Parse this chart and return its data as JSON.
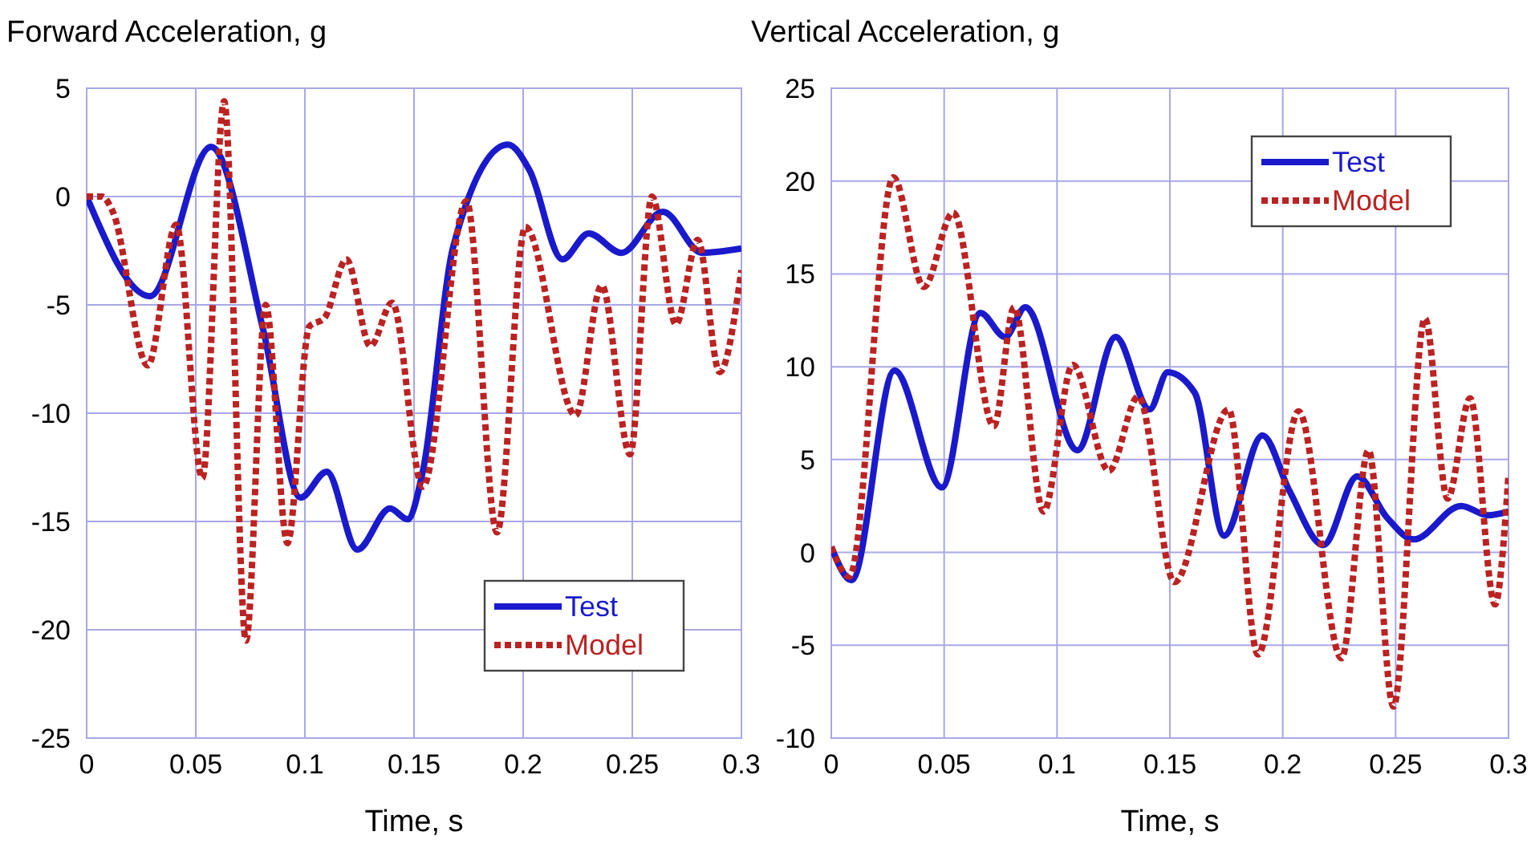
{
  "chart_data": [
    {
      "type": "line",
      "title": "Forward Acceleration, g",
      "xlabel": "Time, s",
      "xlim": [
        0,
        0.3
      ],
      "xticks": [
        0,
        0.05,
        0.1,
        0.15,
        0.2,
        0.25,
        0.3
      ],
      "ylim": [
        -25,
        5
      ],
      "yticks": [
        -25,
        -20,
        -15,
        -10,
        -5,
        0,
        5
      ],
      "grid": true,
      "legend": "bottom right",
      "series": [
        {
          "name": "Test",
          "color": "#1a1acc",
          "line_style": "solid",
          "x": [
            0,
            0.029,
            0.057,
            0.081,
            0.098,
            0.11,
            0.124,
            0.139,
            0.147,
            0.154,
            0.168,
            0.193,
            0.203,
            0.218,
            0.23,
            0.245,
            0.264,
            0.282,
            0.3
          ],
          "values": [
            0,
            -4.6,
            2.3,
            -6.2,
            -13.9,
            -12.7,
            -16.3,
            -14.4,
            -14.9,
            -12.7,
            -2.3,
            2.4,
            1.2,
            -2.9,
            -1.7,
            -2.6,
            -0.7,
            -2.6,
            -2.4
          ]
        },
        {
          "name": "Model",
          "color": "#bb2222",
          "line_style": "dashed",
          "x": [
            0,
            0.007,
            0.012,
            0.028,
            0.041,
            0.053,
            0.063,
            0.073,
            0.082,
            0.092,
            0.102,
            0.109,
            0.119,
            0.13,
            0.14,
            0.154,
            0.174,
            0.188,
            0.201,
            0.224,
            0.236,
            0.249,
            0.259,
            0.27,
            0.28,
            0.29,
            0.3
          ],
          "values": [
            0,
            0,
            -0.7,
            -7.8,
            -1.3,
            -13,
            4.4,
            -20.5,
            -5,
            -16,
            -6,
            -5.6,
            -2.9,
            -6.9,
            -4.9,
            -13.4,
            -0.2,
            -15.5,
            -1.4,
            -10.1,
            -4.1,
            -11.9,
            0,
            -5.9,
            -2,
            -8.1,
            -3.4
          ]
        }
      ]
    },
    {
      "type": "line",
      "title": "Vertical Acceleration, g",
      "xlabel": "Time, s",
      "xlim": [
        0,
        0.3
      ],
      "xticks": [
        0,
        0.05,
        0.1,
        0.15,
        0.2,
        0.25,
        0.3
      ],
      "ylim": [
        -10,
        25
      ],
      "yticks": [
        -10,
        -5,
        0,
        5,
        10,
        15,
        20,
        25
      ],
      "grid": true,
      "legend": "top right",
      "series": [
        {
          "name": "Test",
          "color": "#1a1acc",
          "line_style": "solid",
          "x": [
            0,
            0.009,
            0.028,
            0.049,
            0.066,
            0.077,
            0.086,
            0.109,
            0.126,
            0.141,
            0.149,
            0.161,
            0.174,
            0.191,
            0.203,
            0.218,
            0.233,
            0.246,
            0.258,
            0.279,
            0.291,
            0.3
          ],
          "values": [
            0.3,
            -1.5,
            9.8,
            3.5,
            12.9,
            11.6,
            13.2,
            5.5,
            11.6,
            7.7,
            9.7,
            8.6,
            0.9,
            6.3,
            3.3,
            0.4,
            4.1,
            1.9,
            0.7,
            2.5,
            2,
            2.2
          ]
        },
        {
          "name": "Model",
          "color": "#bb2222",
          "line_style": "dashed",
          "x": [
            0,
            0.008,
            0.0275,
            0.041,
            0.054,
            0.072,
            0.081,
            0.094,
            0.107,
            0.123,
            0.136,
            0.152,
            0.176,
            0.189,
            0.207,
            0.226,
            0.238,
            0.249,
            0.263,
            0.273,
            0.283,
            0.294,
            0.3
          ],
          "values": [
            0.3,
            -1.3,
            20.2,
            14.3,
            18.3,
            6.8,
            13.2,
            2.2,
            10.1,
            4.4,
            8.4,
            -1.6,
            7.7,
            -5.5,
            7.6,
            -5.7,
            5.5,
            -8.3,
            12.6,
            2.9,
            8.3,
            -2.8,
            4.2
          ]
        }
      ]
    }
  ]
}
